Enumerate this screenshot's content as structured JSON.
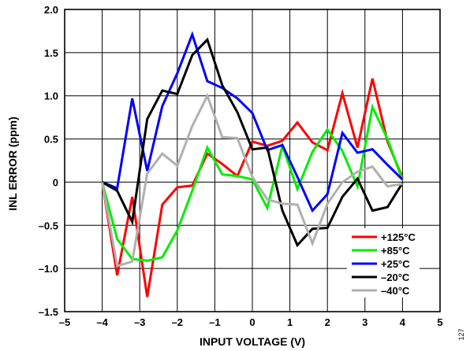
{
  "chart_data": {
    "type": "line",
    "xlabel": "INPUT VOLTAGE (V)",
    "ylabel": "INL ERROR (ppm)",
    "xlim": [
      -5,
      5
    ],
    "ylim": [
      -1.5,
      2.0
    ],
    "x_ticks": [
      -5,
      -4,
      -3,
      -2,
      -1,
      0,
      1,
      2,
      3,
      4,
      5
    ],
    "y_ticks": [
      -1.5,
      -1.0,
      -0.5,
      0,
      0.5,
      1.0,
      1.5,
      2.0
    ],
    "x_tick_labels": [
      "–5",
      "–4",
      "–3",
      "–2",
      "–1",
      "0",
      "1",
      "2",
      "3",
      "4",
      "5"
    ],
    "y_tick_labels": [
      "–1.5",
      "–1.0",
      "–0.5",
      "0",
      "0.5",
      "1.0",
      "1.5",
      "2.0"
    ],
    "grid": true,
    "legend_position": "bottom-right",
    "figure_id": "127",
    "series": [
      {
        "name": "+125°C",
        "color": "#ff0000",
        "x": [
          -4.0,
          -3.6,
          -3.2,
          -2.8,
          -2.4,
          -2.0,
          -1.6,
          -1.2,
          -0.8,
          -0.4,
          0.0,
          0.4,
          0.8,
          1.2,
          1.6,
          2.0,
          2.4,
          2.8,
          3.2,
          3.6,
          4.0
        ],
        "y": [
          0.0,
          -1.08,
          -0.17,
          -1.33,
          -0.26,
          -0.06,
          -0.04,
          0.33,
          0.21,
          0.07,
          0.47,
          0.42,
          0.48,
          0.69,
          0.46,
          0.37,
          1.03,
          0.4,
          1.2,
          0.47,
          0.05
        ]
      },
      {
        "name": "+85°C",
        "color": "#00ee00",
        "x": [
          -4.0,
          -3.6,
          -3.2,
          -2.8,
          -2.4,
          -2.0,
          -1.6,
          -1.2,
          -0.8,
          -0.4,
          0.0,
          0.4,
          0.8,
          1.2,
          1.6,
          2.0,
          2.4,
          2.8,
          3.2,
          3.6,
          4.0
        ],
        "y": [
          0.0,
          -0.66,
          -0.89,
          -0.91,
          -0.87,
          -0.56,
          -0.1,
          0.4,
          0.09,
          0.07,
          0.03,
          -0.3,
          0.42,
          -0.08,
          0.35,
          0.61,
          0.36,
          -0.05,
          0.87,
          0.5,
          0.02
        ]
      },
      {
        "name": "+25°C",
        "color": "#0000ff",
        "x": [
          -4.0,
          -3.6,
          -3.2,
          -2.8,
          -2.4,
          -2.0,
          -1.6,
          -1.2,
          -0.8,
          -0.4,
          0.0,
          0.4,
          0.8,
          1.2,
          1.6,
          2.0,
          2.4,
          2.8,
          3.2,
          3.6,
          4.0
        ],
        "y": [
          0.0,
          -0.07,
          0.97,
          0.13,
          0.88,
          1.26,
          1.71,
          1.17,
          1.09,
          0.97,
          0.8,
          0.37,
          0.43,
          0.06,
          -0.33,
          -0.14,
          0.57,
          0.34,
          0.38,
          0.2,
          0.03
        ]
      },
      {
        "name": "–20°C",
        "color": "#000000",
        "x": [
          -4.0,
          -3.6,
          -3.2,
          -2.8,
          -2.4,
          -2.0,
          -1.6,
          -1.2,
          -0.8,
          -0.4,
          0.0,
          0.4,
          0.8,
          1.2,
          1.6,
          2.0,
          2.4,
          2.8,
          3.2,
          3.6,
          4.0
        ],
        "y": [
          0.0,
          -0.1,
          -0.46,
          0.73,
          1.06,
          1.02,
          1.47,
          1.65,
          1.12,
          0.81,
          0.38,
          0.4,
          -0.33,
          -0.73,
          -0.54,
          -0.53,
          -0.17,
          0.04,
          -0.33,
          -0.29,
          -0.01
        ]
      },
      {
        "name": "–40°C",
        "color": "#b0b0b0",
        "x": [
          -4.0,
          -3.6,
          -3.2,
          -2.8,
          -2.4,
          -2.0,
          -1.6,
          -1.2,
          -0.8,
          -0.4,
          0.0,
          0.4,
          0.8,
          1.2,
          1.6,
          2.0,
          2.4,
          2.8,
          3.2,
          3.6,
          4.0
        ],
        "y": [
          0.0,
          -0.97,
          -0.92,
          0.1,
          0.33,
          0.19,
          0.65,
          1.0,
          0.52,
          0.51,
          0.06,
          -0.2,
          -0.25,
          -0.26,
          -0.71,
          -0.25,
          0.0,
          0.12,
          0.18,
          -0.05,
          -0.02
        ]
      }
    ]
  }
}
